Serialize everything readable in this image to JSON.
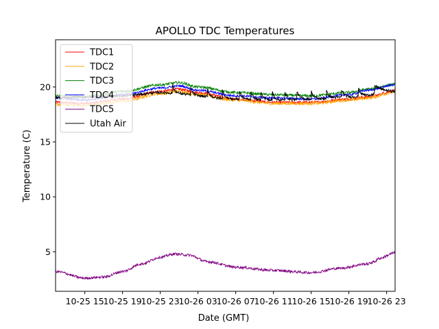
{
  "chart_data": {
    "type": "line",
    "title": "APOLLO TDC Temperatures",
    "xlabel": "Date (GMT)",
    "ylabel": "Temperature (C)",
    "x_units": "hours since 10-25 15:00 GMT",
    "xlim": [
      -3.1,
      32.9
    ],
    "ylim": [
      1.4,
      24.3
    ],
    "x_ticks": [
      {
        "value": 0,
        "label": "10-25 15"
      },
      {
        "value": 4,
        "label": "10-25 19"
      },
      {
        "value": 8,
        "label": "10-25 23"
      },
      {
        "value": 12,
        "label": "10-26 03"
      },
      {
        "value": 16,
        "label": "10-26 07"
      },
      {
        "value": 20,
        "label": "10-26 11"
      },
      {
        "value": 24,
        "label": "10-26 15"
      },
      {
        "value": 28,
        "label": "10-26 19"
      },
      {
        "value": 32,
        "label": "10-26 23"
      }
    ],
    "y_ticks": [
      {
        "value": 5,
        "label": "5"
      },
      {
        "value": 10,
        "label": "10"
      },
      {
        "value": 15,
        "label": "15"
      },
      {
        "value": 20,
        "label": "20"
      }
    ],
    "grid": false,
    "legend": {
      "placement": "top-left"
    },
    "series": [
      {
        "name": "TDC1",
        "color": "#ff0000",
        "noise": 0.12,
        "points": [
          [
            -3.1,
            18.6
          ],
          [
            0,
            18.5
          ],
          [
            4,
            18.9
          ],
          [
            8,
            19.6
          ],
          [
            10,
            19.8
          ],
          [
            12,
            19.5
          ],
          [
            16,
            18.9
          ],
          [
            20,
            18.6
          ],
          [
            24,
            18.6
          ],
          [
            28,
            18.9
          ],
          [
            30,
            19.1
          ],
          [
            32.9,
            19.65
          ]
        ]
      },
      {
        "name": "TDC2",
        "color": "#ffa500",
        "noise": 0.15,
        "points": [
          [
            -3.1,
            18.4
          ],
          [
            0,
            18.3
          ],
          [
            4,
            18.7
          ],
          [
            8,
            19.4
          ],
          [
            10,
            19.6
          ],
          [
            12,
            19.3
          ],
          [
            16,
            18.8
          ],
          [
            20,
            18.5
          ],
          [
            24,
            18.5
          ],
          [
            28,
            18.8
          ],
          [
            30,
            19.0
          ],
          [
            32.9,
            19.55
          ]
        ]
      },
      {
        "name": "TDC3",
        "color": "#008000",
        "noise": 0.12,
        "points": [
          [
            -3.1,
            19.2
          ],
          [
            0,
            19.1
          ],
          [
            4,
            19.6
          ],
          [
            8,
            20.2
          ],
          [
            10,
            20.4
          ],
          [
            12,
            20.0
          ],
          [
            16,
            19.5
          ],
          [
            20,
            19.3
          ],
          [
            24,
            19.2
          ],
          [
            28,
            19.5
          ],
          [
            30,
            19.8
          ],
          [
            32.9,
            20.25
          ]
        ]
      },
      {
        "name": "TDC4",
        "color": "#0000ff",
        "noise": 0.1,
        "points": [
          [
            -3.1,
            19.0
          ],
          [
            0,
            18.8
          ],
          [
            4,
            19.3
          ],
          [
            8,
            19.9
          ],
          [
            10,
            20.1
          ],
          [
            12,
            19.7
          ],
          [
            16,
            19.2
          ],
          [
            20,
            19.0
          ],
          [
            24,
            18.9
          ],
          [
            28,
            19.3
          ],
          [
            30,
            19.7
          ],
          [
            32.9,
            20.2
          ]
        ]
      },
      {
        "name": "TDC5",
        "color": "#800080",
        "noise": 0.12,
        "points": [
          [
            -3.1,
            3.2
          ],
          [
            0,
            2.6
          ],
          [
            2,
            2.7
          ],
          [
            4,
            3.2
          ],
          [
            6,
            3.9
          ],
          [
            8,
            4.5
          ],
          [
            9.5,
            4.8
          ],
          [
            11,
            4.7
          ],
          [
            13,
            4.1
          ],
          [
            16,
            3.6
          ],
          [
            20,
            3.3
          ],
          [
            24,
            3.1
          ],
          [
            27,
            3.5
          ],
          [
            30,
            3.9
          ],
          [
            30.7,
            4.1
          ],
          [
            31.2,
            4.4
          ],
          [
            32.9,
            4.9
          ]
        ]
      },
      {
        "name": "Utah Air",
        "color": "#000000",
        "noise": 0.12,
        "points": [
          [
            -3.1,
            19.0
          ],
          [
            0,
            19.1
          ],
          [
            4,
            19.2
          ],
          [
            8,
            19.5
          ],
          [
            10,
            19.4
          ],
          [
            12,
            19.2
          ],
          [
            14,
            19.0
          ],
          [
            16,
            18.9
          ],
          [
            20,
            18.8
          ],
          [
            24,
            18.9
          ],
          [
            28,
            19.1
          ],
          [
            30.6,
            19.3
          ],
          [
            31,
            19.8
          ],
          [
            32.9,
            19.6
          ]
        ],
        "spike_hours": [
          9.3,
          11.2,
          13.0,
          14.6,
          16.4,
          17.6,
          18.7,
          19.9,
          21.2,
          22.5,
          24.0,
          25.6,
          27.2,
          29.0,
          30.7
        ],
        "spike_height": 0.75
      }
    ]
  }
}
